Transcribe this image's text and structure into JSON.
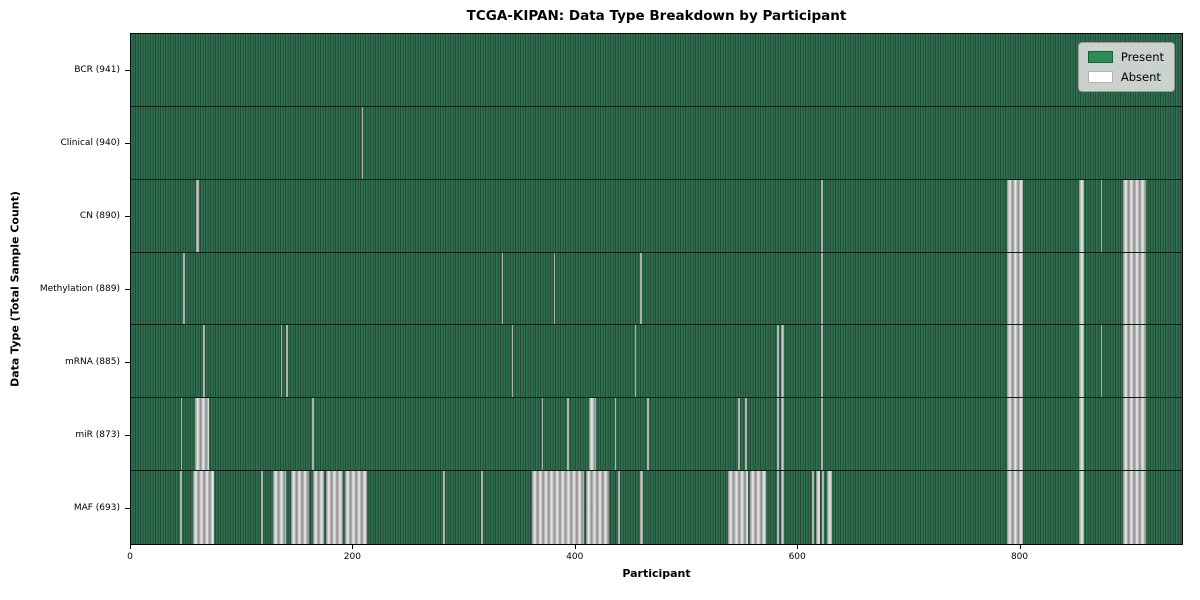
{
  "chart_data": {
    "type": "heatmap",
    "title": "TCGA-KIPAN: Data Type Breakdown by Participant",
    "xlabel": "Participant",
    "ylabel": "Data Type (Total Sample Count)",
    "x_ticks": [
      0,
      200,
      400,
      600,
      800
    ],
    "x_max": 947,
    "legend": [
      {
        "label": "Present",
        "color": "#2e8b57"
      },
      {
        "label": "Absent",
        "color": "#ffffff"
      }
    ],
    "colors": {
      "present_fill": "#2e8b57",
      "absent_fill": "#ffffff",
      "absent_render": "#bdbdbd"
    },
    "legend_position": "upper right",
    "rows": [
      {
        "label": "BCR (941)",
        "data_type": "BCR",
        "present_count": 941,
        "absent_ranges": []
      },
      {
        "label": "Clinical (940)",
        "data_type": "Clinical",
        "present_count": 940,
        "absent_ranges": [
          [
            208,
            209
          ]
        ]
      },
      {
        "label": "CN (890)",
        "data_type": "CN",
        "present_count": 890,
        "absent_ranges": [
          [
            59,
            61
          ],
          [
            622,
            623
          ],
          [
            789,
            804
          ],
          [
            854,
            859
          ],
          [
            874,
            875
          ],
          [
            894,
            915
          ]
        ]
      },
      {
        "label": "Methylation (889)",
        "data_type": "Methylation",
        "present_count": 889,
        "absent_ranges": [
          [
            47,
            48
          ],
          [
            334,
            335
          ],
          [
            381,
            382
          ],
          [
            459,
            460
          ],
          [
            622,
            623
          ],
          [
            789,
            804
          ],
          [
            854,
            859
          ],
          [
            894,
            915
          ]
        ]
      },
      {
        "label": "mRNA (885)",
        "data_type": "mRNA",
        "present_count": 885,
        "absent_ranges": [
          [
            65,
            66
          ],
          [
            135,
            136
          ],
          [
            140,
            141
          ],
          [
            343,
            344
          ],
          [
            454,
            455
          ],
          [
            582,
            584
          ],
          [
            586,
            588
          ],
          [
            622,
            623
          ],
          [
            789,
            804
          ],
          [
            854,
            859
          ],
          [
            874,
            875
          ],
          [
            894,
            915
          ]
        ]
      },
      {
        "label": "miR (873)",
        "data_type": "miR",
        "present_count": 873,
        "absent_ranges": [
          [
            45,
            46
          ],
          [
            58,
            70
          ],
          [
            163,
            165
          ],
          [
            370,
            371
          ],
          [
            393,
            394
          ],
          [
            413,
            419
          ],
          [
            436,
            437
          ],
          [
            465,
            467
          ],
          [
            547,
            548
          ],
          [
            553,
            555
          ],
          [
            582,
            584
          ],
          [
            586,
            588
          ],
          [
            622,
            623
          ],
          [
            789,
            804
          ],
          [
            854,
            859
          ],
          [
            894,
            915
          ]
        ]
      },
      {
        "label": "MAF (693)",
        "data_type": "MAF",
        "present_count": 693,
        "absent_ranges": [
          [
            44,
            46
          ],
          [
            56,
            75
          ],
          [
            117,
            119
          ],
          [
            128,
            140
          ],
          [
            144,
            160
          ],
          [
            164,
            174
          ],
          [
            176,
            191
          ],
          [
            193,
            213
          ],
          [
            281,
            283
          ],
          [
            315,
            317
          ],
          [
            361,
            408
          ],
          [
            410,
            431
          ],
          [
            439,
            441
          ],
          [
            459,
            461
          ],
          [
            538,
            556
          ],
          [
            558,
            572
          ],
          [
            582,
            584
          ],
          [
            586,
            588
          ],
          [
            614,
            615
          ],
          [
            617,
            621
          ],
          [
            623,
            624
          ],
          [
            627,
            632
          ],
          [
            789,
            804
          ],
          [
            854,
            859
          ],
          [
            894,
            915
          ]
        ]
      }
    ]
  }
}
